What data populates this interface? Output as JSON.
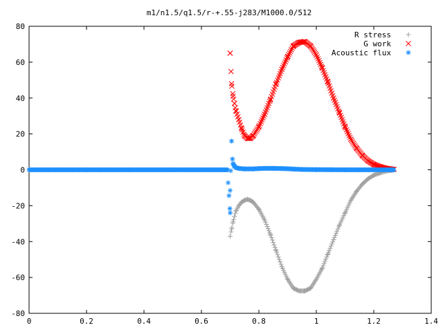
{
  "chart_data": {
    "type": "scatter",
    "title": "m1/n1.5/q1.5/r-+.55-j283/M1000.0/512",
    "xlabel": "",
    "ylabel": "",
    "xlim": [
      0,
      1.4
    ],
    "ylim": [
      -80,
      80
    ],
    "grid": false,
    "legend_position": "top-right",
    "x_ticks": [
      "0",
      "0.2",
      "0.4",
      "0.6",
      "0.8",
      "1",
      "1.2",
      "1.4"
    ],
    "y_ticks": [
      "80",
      "60",
      "40",
      "20",
      "0",
      "-20",
      "-40",
      "-60",
      "-80"
    ],
    "series": [
      {
        "name": "R stress",
        "marker": "plus",
        "color": "#a0a0a0",
        "x": [
          0.7,
          0.705,
          0.71,
          0.715,
          0.72,
          0.73,
          0.74,
          0.75,
          0.76,
          0.77,
          0.78,
          0.8,
          0.82,
          0.84,
          0.86,
          0.88,
          0.9,
          0.92,
          0.94,
          0.96,
          0.98,
          1.0,
          1.02,
          1.04,
          1.06,
          1.08,
          1.1,
          1.12,
          1.14,
          1.16,
          1.18,
          1.2,
          1.22,
          1.24,
          1.26,
          1.27
        ],
        "y": [
          -37,
          -33,
          -29,
          -26,
          -23,
          -20,
          -18,
          -17,
          -16.5,
          -17,
          -18,
          -22,
          -28,
          -36,
          -45,
          -54,
          -61,
          -66,
          -67.5,
          -67.5,
          -66,
          -61,
          -55,
          -47,
          -39,
          -31,
          -24,
          -17,
          -12,
          -8,
          -5,
          -3,
          -1.8,
          -0.8,
          -0.3,
          -0.1
        ]
      },
      {
        "name": "G work",
        "marker": "x",
        "color": "#ff0000",
        "x": [
          0.7,
          0.705,
          0.71,
          0.715,
          0.72,
          0.73,
          0.74,
          0.75,
          0.76,
          0.77,
          0.78,
          0.8,
          0.82,
          0.84,
          0.86,
          0.88,
          0.9,
          0.92,
          0.94,
          0.96,
          0.98,
          1.0,
          1.02,
          1.04,
          1.06,
          1.08,
          1.1,
          1.12,
          1.14,
          1.16,
          1.18,
          1.2,
          1.22,
          1.24,
          1.26,
          1.27
        ],
        "y": [
          65,
          48,
          41,
          37,
          33,
          28,
          23,
          19,
          17.5,
          17.5,
          19,
          24,
          31,
          39,
          48,
          56,
          63,
          69,
          71,
          71.5,
          69,
          64,
          57,
          49,
          40,
          32,
          24,
          17,
          12,
          8,
          5,
          3,
          1.8,
          0.9,
          0.4,
          0.2
        ]
      },
      {
        "name": "Acoustic flux",
        "marker": "asterisk",
        "color": "#1e90ff",
        "x": [
          0.0,
          0.05,
          0.1,
          0.15,
          0.2,
          0.25,
          0.3,
          0.35,
          0.4,
          0.45,
          0.5,
          0.55,
          0.6,
          0.65,
          0.69,
          0.7,
          0.7,
          0.705,
          0.708,
          0.71,
          0.715,
          0.72,
          0.73,
          0.75,
          0.78,
          0.8,
          0.82,
          0.85,
          0.88,
          0.9,
          0.92,
          0.95,
          1.0,
          1.05,
          1.1,
          1.15,
          1.2,
          1.25,
          1.27
        ],
        "y": [
          0,
          0,
          0,
          0,
          0,
          0,
          0,
          0,
          0,
          0,
          0,
          0,
          0,
          0,
          0,
          -24,
          -11.5,
          16,
          6,
          3.5,
          2,
          1.2,
          0.8,
          0.5,
          0.5,
          0.7,
          0.8,
          0.8,
          0.7,
          0.6,
          0.4,
          0.2,
          0.1,
          0.05,
          0,
          0,
          0,
          0,
          0
        ]
      }
    ]
  }
}
